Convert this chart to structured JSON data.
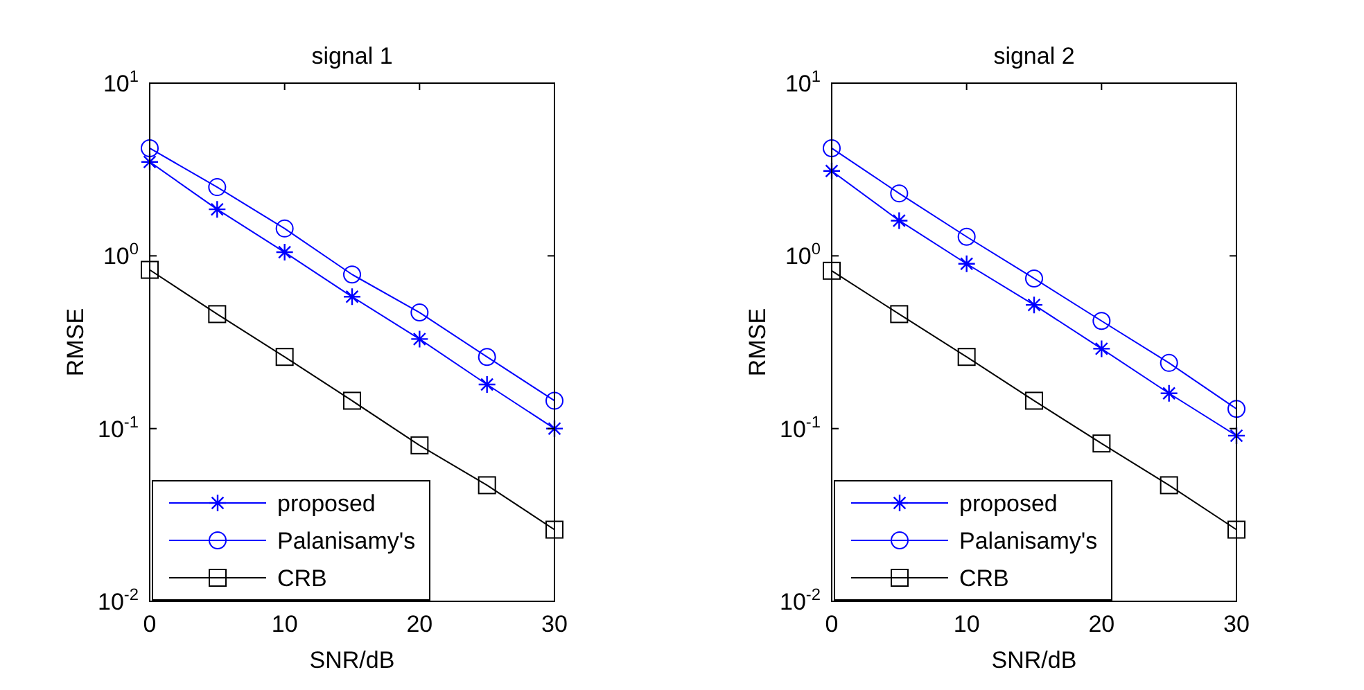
{
  "chart_data": [
    {
      "type": "line",
      "title": "signal 1",
      "xlabel": "SNR/dB",
      "ylabel": "RMSE",
      "x": [
        0,
        5,
        10,
        15,
        20,
        25,
        30
      ],
      "xlim": [
        0,
        30
      ],
      "xticks": [
        0,
        10,
        20,
        30
      ],
      "ylim": [
        0.01,
        10
      ],
      "yticks": [
        {
          "value": 0.01,
          "label": "10$^{-2}$"
        },
        {
          "value": 0.1,
          "label": "10$^{-1}$"
        },
        {
          "value": 1,
          "label": "10$^{0}$"
        },
        {
          "value": 10,
          "label": "10$^{1}$"
        }
      ],
      "log": "y",
      "grid": false,
      "legend": "bottom left",
      "series": [
        {
          "name": "proposed",
          "color": "#0000ff",
          "marker": "cross",
          "values": [
            3.5,
            1.86,
            1.05,
            0.58,
            0.33,
            0.18,
            0.1
          ]
        },
        {
          "name": "Palanisamy's",
          "color": "#0000ff",
          "marker": "circle",
          "values": [
            4.2,
            2.5,
            1.44,
            0.78,
            0.47,
            0.26,
            0.145
          ]
        },
        {
          "name": "CRB",
          "color": "#000000",
          "marker": "square",
          "values": [
            0.83,
            0.46,
            0.26,
            0.145,
            0.08,
            0.047,
            0.026
          ]
        }
      ]
    },
    {
      "type": "line",
      "title": "signal 2",
      "xlabel": "SNR/dB",
      "ylabel": "RMSE",
      "x": [
        0,
        5,
        10,
        15,
        20,
        25,
        30
      ],
      "xlim": [
        0,
        30
      ],
      "xticks": [
        0,
        10,
        20,
        30
      ],
      "ylim": [
        0.01,
        10
      ],
      "yticks": [
        {
          "value": 0.01,
          "label": "10$^{-2}$"
        },
        {
          "value": 0.1,
          "label": "10$^{-1}$"
        },
        {
          "value": 1,
          "label": "10$^{0}$"
        },
        {
          "value": 10,
          "label": "10$^{1}$"
        }
      ],
      "log": "y",
      "grid": false,
      "legend": "bottom left",
      "series": [
        {
          "name": "proposed",
          "color": "#0000ff",
          "marker": "cross",
          "values": [
            3.1,
            1.6,
            0.9,
            0.52,
            0.29,
            0.16,
            0.091
          ]
        },
        {
          "name": "Palanisamy's",
          "color": "#0000ff",
          "marker": "circle",
          "values": [
            4.2,
            2.3,
            1.29,
            0.74,
            0.42,
            0.24,
            0.13
          ]
        },
        {
          "name": "CRB",
          "color": "#000000",
          "marker": "square",
          "values": [
            0.82,
            0.46,
            0.26,
            0.145,
            0.082,
            0.047,
            0.026
          ]
        }
      ]
    }
  ]
}
